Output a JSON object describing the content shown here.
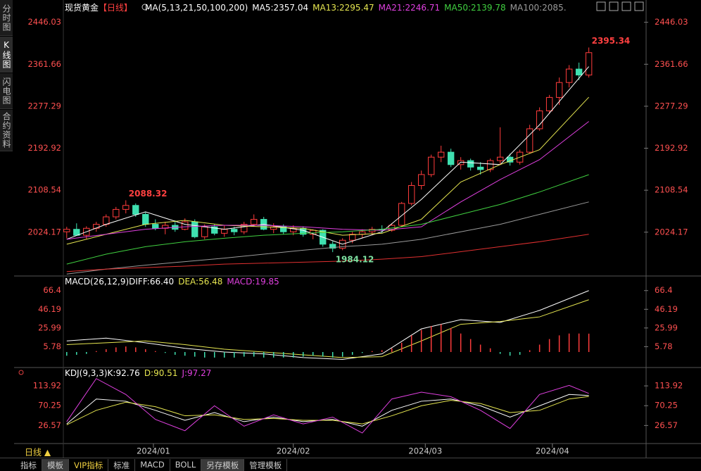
{
  "sidebar": [
    "分时图",
    "K线图",
    "闪电图",
    "合约资料"
  ],
  "footer": {
    "timeframe": "日线 ▲",
    "tabs": [
      "指标",
      "模板",
      "VIP指标",
      "标准",
      "MACD",
      "BOLL",
      "另存模板",
      "管理模板"
    ]
  },
  "chart_data": [
    {
      "type": "candlestick",
      "title": "现货黄金",
      "period": "【日线】",
      "indicator": "MA(5,13,21,50,100,200)",
      "up_color": "#ff3c3c",
      "down_color": "#3fe0b0",
      "x": [
        0,
        1,
        2,
        3,
        4,
        5,
        6,
        7,
        8,
        9,
        10,
        11,
        12,
        13,
        14,
        15,
        16,
        17,
        18,
        19,
        20,
        21,
        22,
        23,
        24,
        25,
        26,
        27,
        28,
        29,
        30,
        31,
        32,
        33,
        34,
        35,
        36,
        37,
        38,
        39,
        40,
        41,
        42,
        43,
        44,
        45,
        46,
        47,
        48,
        49,
        50,
        51,
        52,
        53
      ],
      "ohlc": [
        [
          2025,
          2035,
          2012,
          2030
        ],
        [
          2030,
          2042,
          2020,
          2018
        ],
        [
          2018,
          2036,
          2010,
          2032
        ],
        [
          2032,
          2045,
          2025,
          2040
        ],
        [
          2040,
          2060,
          2035,
          2055
        ],
        [
          2055,
          2075,
          2050,
          2070
        ],
        [
          2070,
          2088.32,
          2062,
          2078
        ],
        [
          2078,
          2082,
          2055,
          2060
        ],
        [
          2060,
          2065,
          2035,
          2040
        ],
        [
          2040,
          2050,
          2028,
          2032
        ],
        [
          2032,
          2045,
          2020,
          2038
        ],
        [
          2038,
          2048,
          2025,
          2030
        ],
        [
          2030,
          2052,
          2028,
          2045
        ],
        [
          2045,
          2050,
          2012,
          2015
        ],
        [
          2015,
          2040,
          2010,
          2035
        ],
        [
          2035,
          2040,
          2018,
          2022
        ],
        [
          2022,
          2038,
          2015,
          2030
        ],
        [
          2030,
          2035,
          2018,
          2025
        ],
        [
          2025,
          2045,
          2020,
          2040
        ],
        [
          2040,
          2060,
          2035,
          2050
        ],
        [
          2050,
          2055,
          2028,
          2030
        ],
        [
          2030,
          2042,
          2022,
          2035
        ],
        [
          2035,
          2040,
          2020,
          2025
        ],
        [
          2025,
          2038,
          2018,
          2032
        ],
        [
          2032,
          2036,
          2015,
          2020
        ],
        [
          2020,
          2030,
          2010,
          2028
        ],
        [
          2028,
          2030,
          1995,
          2000
        ],
        [
          2000,
          2006,
          1984.12,
          1992
        ],
        [
          1992,
          2012,
          1988,
          2008
        ],
        [
          2008,
          2025,
          2002,
          2020
        ],
        [
          2020,
          2030,
          2012,
          2025
        ],
        [
          2025,
          2035,
          2018,
          2030
        ],
        [
          2030,
          2038,
          2022,
          2028
        ],
        [
          2028,
          2042,
          2025,
          2038
        ],
        [
          2038,
          2085,
          2035,
          2082
        ],
        [
          2082,
          2125,
          2078,
          2118
        ],
        [
          2118,
          2148,
          2110,
          2140
        ],
        [
          2140,
          2180,
          2135,
          2175
        ],
        [
          2175,
          2198,
          2165,
          2185
        ],
        [
          2185,
          2192,
          2155,
          2160
        ],
        [
          2160,
          2175,
          2150,
          2168
        ],
        [
          2168,
          2172,
          2148,
          2155
        ],
        [
          2155,
          2165,
          2140,
          2150
        ],
        [
          2150,
          2172,
          2145,
          2168
        ],
        [
          2168,
          2235,
          2160,
          2175
        ],
        [
          2175,
          2182,
          2158,
          2165
        ],
        [
          2165,
          2190,
          2160,
          2185
        ],
        [
          2185,
          2240,
          2182,
          2232
        ],
        [
          2232,
          2275,
          2228,
          2268
        ],
        [
          2268,
          2300,
          2262,
          2295
        ],
        [
          2295,
          2335,
          2280,
          2325
        ],
        [
          2325,
          2360,
          2315,
          2352
        ],
        [
          2352,
          2365,
          2330,
          2340
        ],
        [
          2340,
          2395.34,
          2335,
          2385
        ]
      ],
      "series": [
        {
          "label": "MA5:2357.04",
          "color": "#ffffff",
          "x": [
            0,
            4,
            8,
            12,
            16,
            20,
            24,
            28,
            32,
            36,
            40,
            44,
            48,
            53
          ],
          "values": [
            2010,
            2040,
            2065,
            2040,
            2030,
            2040,
            2028,
            2000,
            2025,
            2090,
            2165,
            2160,
            2240,
            2357.04
          ]
        },
        {
          "label": "MA13:2295.47",
          "color": "#e6e650",
          "x": [
            0,
            4,
            8,
            12,
            16,
            20,
            24,
            28,
            32,
            36,
            40,
            44,
            48,
            53
          ],
          "values": [
            2000,
            2020,
            2040,
            2048,
            2038,
            2035,
            2032,
            2018,
            2022,
            2050,
            2125,
            2160,
            2190,
            2295.47
          ]
        },
        {
          "label": "MA21:2246.71",
          "color": "#e040e0",
          "x": [
            0,
            4,
            8,
            12,
            16,
            20,
            24,
            28,
            32,
            36,
            40,
            44,
            48,
            53
          ],
          "values": [
            2010,
            2020,
            2030,
            2035,
            2038,
            2038,
            2035,
            2030,
            2028,
            2035,
            2085,
            2130,
            2170,
            2246.71
          ]
        },
        {
          "label": "MA50:2139.78",
          "color": "#40d040",
          "x": [
            0,
            4,
            8,
            12,
            16,
            20,
            24,
            28,
            32,
            36,
            40,
            44,
            48,
            53
          ],
          "values": [
            1960,
            1980,
            1995,
            2005,
            2012,
            2018,
            2022,
            2025,
            2030,
            2040,
            2060,
            2080,
            2105,
            2139.78
          ]
        },
        {
          "label": "MA100:2085.",
          "color": "#9a9a9a",
          "x": [
            0,
            4,
            8,
            12,
            16,
            20,
            24,
            28,
            32,
            36,
            40,
            44,
            48,
            53
          ],
          "values": [
            1940,
            1950,
            1958,
            1965,
            1972,
            1980,
            1988,
            1995,
            2000,
            2010,
            2025,
            2040,
            2060,
            2085
          ]
        },
        {
          "color": "#e03030",
          "x": [
            0,
            4,
            8,
            12,
            16,
            20,
            24,
            28,
            32,
            36,
            40,
            44,
            48,
            53
          ],
          "values": [
            1945,
            1950,
            1953,
            1956,
            1960,
            1962,
            1964,
            1966,
            1970,
            1975,
            1985,
            1995,
            2005,
            2020
          ]
        }
      ],
      "annotations": [
        {
          "label": "2395.34",
          "x": 53,
          "value": 2395.34,
          "color": "#ff4040"
        },
        {
          "label": "2088.32",
          "x": 6,
          "value": 2088.32,
          "color": "#ff4040"
        },
        {
          "label": "1984.12",
          "x": 27,
          "value": 1984.12,
          "color": "#7de0a0"
        }
      ],
      "xlim": [
        -0.2,
        58.6
      ],
      "ylim": [
        1939,
        2462.5
      ],
      "yticks": [
        2024.17,
        2108.54,
        2192.92,
        2277.29,
        2361.66,
        2446.03
      ],
      "xticks": [
        {
          "value": 8.8,
          "label": "2024/01"
        },
        {
          "value": 23,
          "label": "2024/02"
        },
        {
          "value": 36.4,
          "label": "2024/03"
        },
        {
          "value": 49.3,
          "label": "2024/04"
        }
      ],
      "grid": false
    },
    {
      "type": "line",
      "title": "MACD(26,12,9)",
      "series": [
        {
          "label": "DIFF:66.40",
          "color": "#ffffff",
          "x": [
            0,
            4,
            8,
            12,
            16,
            20,
            24,
            28,
            32,
            36,
            40,
            44,
            48,
            53
          ],
          "values": [
            12,
            15,
            10,
            4,
            0,
            -2,
            -6,
            -8,
            -2,
            25,
            35,
            32,
            45,
            66.4
          ]
        },
        {
          "label": "DEA:56.48",
          "color": "#e6e650",
          "x": [
            0,
            4,
            8,
            12,
            16,
            20,
            24,
            28,
            32,
            36,
            40,
            44,
            48,
            53
          ],
          "values": [
            8,
            10,
            12,
            8,
            3,
            0,
            -3,
            -6,
            -5,
            12,
            30,
            33,
            38,
            56.48
          ]
        },
        {
          "label": "MACD:19.85",
          "type": "bar",
          "color": "#e040e0",
          "up_color": "#ff3c3c",
          "down_color": "#3fe0b0",
          "x": [
            0,
            1,
            2,
            3,
            4,
            5,
            6,
            7,
            8,
            9,
            10,
            11,
            12,
            13,
            14,
            15,
            16,
            17,
            18,
            19,
            20,
            21,
            22,
            23,
            24,
            25,
            26,
            27,
            28,
            29,
            30,
            31,
            32,
            33,
            34,
            35,
            36,
            37,
            38,
            39,
            40,
            41,
            42,
            43,
            44,
            45,
            46,
            47,
            48,
            49,
            50,
            51,
            52,
            53
          ],
          "values": [
            -4,
            -3,
            -2,
            1,
            3,
            5,
            6,
            5,
            3,
            1,
            -1,
            -3,
            -4,
            -5,
            -6,
            -6,
            -6,
            -6,
            -5,
            -5,
            -6,
            -6,
            -6,
            -6,
            -5,
            -4,
            -5,
            -6,
            -5,
            -3,
            -1,
            1,
            2,
            4,
            10,
            18,
            24,
            28,
            30,
            26,
            20,
            14,
            8,
            4,
            -2,
            -4,
            -3,
            2,
            8,
            14,
            18,
            20,
            20,
            19.85
          ]
        }
      ],
      "xlim": [
        -0.2,
        58.6
      ],
      "ylim": [
        -13.7,
        76.1
      ],
      "yticks": [
        5.78,
        25.99,
        46.19,
        66.4
      ],
      "grid": false
    },
    {
      "type": "line",
      "title": "KDJ(9,3,3)",
      "series": [
        {
          "label": "K:92.76",
          "color": "#ffffff",
          "x": [
            0,
            3,
            6,
            9,
            12,
            15,
            18,
            21,
            24,
            27,
            30,
            33,
            36,
            39,
            42,
            45,
            48,
            51,
            53
          ],
          "values": [
            30,
            85,
            80,
            60,
            38,
            55,
            35,
            45,
            35,
            40,
            25,
            60,
            80,
            85,
            70,
            45,
            70,
            95,
            92.76
          ]
        },
        {
          "label": "D:90.51",
          "color": "#e6e650",
          "x": [
            0,
            3,
            6,
            9,
            12,
            15,
            18,
            21,
            24,
            27,
            30,
            33,
            36,
            39,
            42,
            45,
            48,
            51,
            53
          ],
          "values": [
            28,
            60,
            78,
            68,
            48,
            50,
            40,
            42,
            38,
            38,
            30,
            48,
            70,
            82,
            75,
            55,
            60,
            85,
            90.51
          ]
        },
        {
          "label": "J:97.27",
          "color": "#e040e0",
          "x": [
            0,
            3,
            6,
            9,
            12,
            15,
            18,
            21,
            24,
            27,
            30,
            33,
            36,
            39,
            42,
            45,
            48,
            51,
            53
          ],
          "values": [
            35,
            130,
            95,
            40,
            15,
            70,
            25,
            50,
            30,
            45,
            10,
            85,
            100,
            90,
            60,
            20,
            95,
            115,
            97.27
          ]
        }
      ],
      "xlim": [
        -0.2,
        58.6
      ],
      "ylim": [
        -5.5,
        135.8
      ],
      "yticks": [
        26.57,
        70.25,
        113.92
      ],
      "grid": false
    }
  ]
}
